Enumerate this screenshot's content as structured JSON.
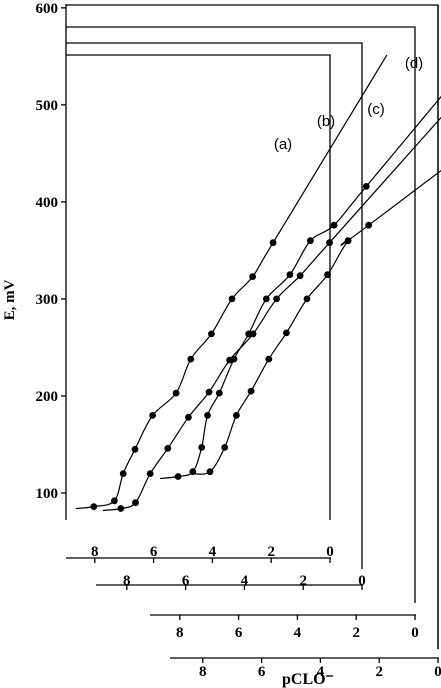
{
  "chart_data": {
    "type": "scatter",
    "title": "",
    "ylabel": "E, mV",
    "xlabel": "pCLO⁻",
    "ylim": [
      80,
      600
    ],
    "yticks": [
      100,
      200,
      300,
      400,
      500,
      600
    ],
    "x_reversed": true,
    "grid": false,
    "series": [
      {
        "name": "(a)",
        "xlim": [
          9.2,
          0
        ],
        "xticks": [
          "8",
          "6",
          "4",
          "2",
          "0"
        ],
        "x": [
          8,
          7.3,
          7,
          6.6,
          6,
          5.2,
          4.7,
          4,
          3.3,
          2.6,
          1.9
        ],
        "y": [
          86,
          92,
          120,
          145,
          180,
          203,
          238,
          264,
          300,
          323,
          358
        ]
      },
      {
        "name": "(b)",
        "xlim": [
          9.2,
          0
        ],
        "xticks": [
          "8",
          "6",
          "4",
          "2",
          "0"
        ],
        "x": [
          8,
          7.5,
          7,
          6.4,
          5.7,
          5,
          4.3,
          3.5,
          2.7,
          1.9,
          0.9
        ],
        "y": [
          84,
          90,
          120,
          146,
          178,
          204,
          237,
          264,
          300,
          324,
          358
        ]
      },
      {
        "name": "(c)",
        "xlim": [
          9.2,
          0
        ],
        "xticks": [
          "8",
          "6",
          "4",
          "2",
          "0"
        ],
        "x": [
          6.9,
          6.4,
          6.1,
          5.9,
          5.5,
          5,
          4.5,
          3.9,
          3.1,
          2.4,
          1.6,
          0.5
        ],
        "y": [
          117,
          122,
          147,
          180,
          203,
          238,
          264,
          300,
          325,
          360,
          376,
          416
        ]
      },
      {
        "name": "(d)",
        "xlim": [
          9.2,
          0
        ],
        "xticks": [
          "8",
          "6",
          "4",
          "2",
          "0"
        ],
        "x": [
          6.6,
          6.1,
          5.7,
          5.2,
          4.6,
          4,
          3.3,
          2.6,
          1.9,
          1.2
        ],
        "y": [
          122,
          147,
          180,
          205,
          238,
          265,
          300,
          325,
          360,
          376
        ]
      }
    ]
  }
}
